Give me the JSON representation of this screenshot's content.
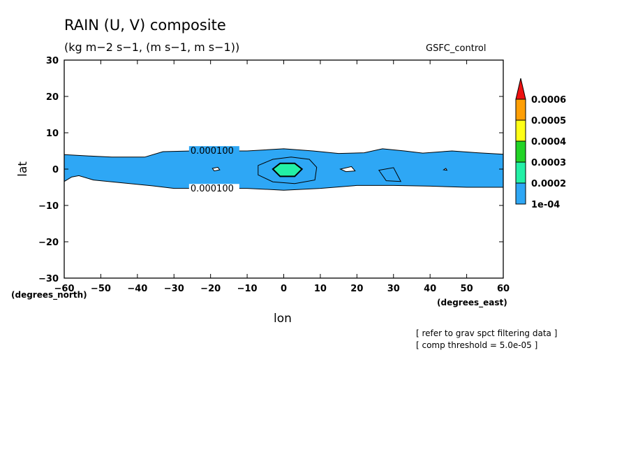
{
  "title": "RAIN (U, V) composite",
  "subtitle": "(kg m−2 s−1, (m s−1, m s−1))",
  "source_label": "GSFC_control",
  "notes": [
    "[ refer to grav spct filtering data ]",
    "[ comp threshold = 5.0e-05 ]"
  ],
  "chart_data": {
    "type": "contour",
    "xlabel": "lon",
    "ylabel": "lat",
    "x_units": "(degrees_east)",
    "y_units": "(degrees_north)",
    "xlim": [
      -60,
      60
    ],
    "ylim": [
      -30,
      30
    ],
    "xticks": [
      -60,
      -50,
      -40,
      -30,
      -20,
      -10,
      0,
      10,
      20,
      30,
      40,
      50,
      60
    ],
    "yticks": [
      -30,
      -20,
      -10,
      0,
      10,
      20,
      30
    ],
    "contour_label": "0.000100",
    "colorbar": {
      "levels": [
        "1e-04",
        "0.0002",
        "0.0003",
        "0.0004",
        "0.0005",
        "0.0006"
      ],
      "colors": [
        "#2ea7f5",
        "#23f0a6",
        "#22d426",
        "#ffff16",
        "#ff9f05",
        "#ee1111"
      ]
    },
    "regions": [
      {
        "level": "1e-04",
        "color": "#2ea7f5",
        "outline": [
          [
            -60,
            4
          ],
          [
            -53,
            3.6
          ],
          [
            -47,
            3.3
          ],
          [
            -38,
            3.3
          ],
          [
            -33,
            4.8
          ],
          [
            -25,
            5
          ],
          [
            -10,
            5
          ],
          [
            0,
            5.6
          ],
          [
            8,
            5
          ],
          [
            15,
            4.3
          ],
          [
            22,
            4.5
          ],
          [
            27,
            5.6
          ],
          [
            33,
            5
          ],
          [
            38,
            4.4
          ],
          [
            46,
            5
          ],
          [
            53,
            4.5
          ],
          [
            60,
            4.1
          ],
          [
            60,
            -5
          ],
          [
            50,
            -5
          ],
          [
            40,
            -4.7
          ],
          [
            30,
            -4.5
          ],
          [
            20,
            -4.5
          ],
          [
            10,
            -5.3
          ],
          [
            0,
            -5.8
          ],
          [
            -10,
            -5.3
          ],
          [
            -20,
            -5.3
          ],
          [
            -30,
            -5.3
          ],
          [
            -36,
            -4.6
          ],
          [
            -45,
            -3.7
          ],
          [
            -52,
            -3
          ],
          [
            -56,
            -1.8
          ],
          [
            -58,
            -2.2
          ],
          [
            -60,
            -3.4
          ]
        ]
      },
      {
        "level": "0.0002",
        "color": "#2ea7f5",
        "outline": [
          [
            -7,
            1
          ],
          [
            -3,
            2.7
          ],
          [
            2,
            3.3
          ],
          [
            7,
            2.7
          ],
          [
            9,
            0.5
          ],
          [
            8.5,
            -3
          ],
          [
            3,
            -4
          ],
          [
            -3,
            -3.5
          ],
          [
            -7,
            -1.6
          ]
        ]
      },
      {
        "level": "0.0003",
        "color": "#23f0a6",
        "outline": [
          [
            -3,
            0
          ],
          [
            -1,
            1.6
          ],
          [
            3,
            1.6
          ],
          [
            5,
            0
          ],
          [
            3,
            -2
          ],
          [
            -1,
            -2
          ]
        ]
      }
    ],
    "minor_contours": [
      [
        [
          -18,
          0.5
        ],
        [
          -17.5,
          -0.2
        ],
        [
          -19,
          -0.5
        ],
        [
          -19.5,
          0.2
        ]
      ],
      [
        [
          15.5,
          0
        ],
        [
          18.5,
          0.7
        ],
        [
          19.5,
          -0.5
        ],
        [
          17,
          -0.7
        ]
      ],
      [
        [
          26,
          -0.3
        ],
        [
          30,
          0.4
        ],
        [
          32,
          -3.4
        ],
        [
          28,
          -3.2
        ]
      ],
      [
        [
          43.7,
          -0.2
        ],
        [
          44.6,
          -0.3
        ],
        [
          44.3,
          0.2
        ]
      ]
    ]
  }
}
